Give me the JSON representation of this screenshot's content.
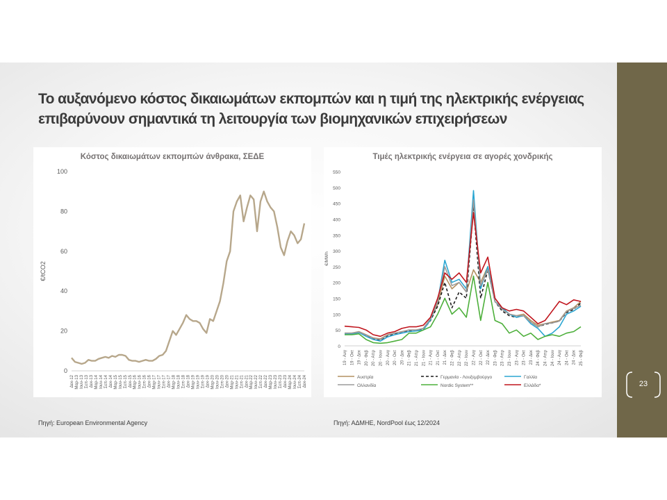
{
  "slide": {
    "title": "Το αυξανόμενο κόστος δικαιωμάτων εκπομπών και η τιμή της ηλεκτρικής ενέργειας επιβαρύνουν σημαντικά τη λειτουργία των βιομηχανικών επιχειρήσεων",
    "page_number": "23",
    "source_left": "Πηγή: European Environmental Agency",
    "source_right": "Πηγή: ΑΔΜΗΕ, NordPool έως 12/2024",
    "colors": {
      "sidebar": "#706749",
      "title": "#3b3b3b",
      "chart_title": "#757171"
    }
  },
  "chart_data": [
    {
      "type": "line",
      "title": "Κόστος δικαιωμάτων εκπομπών άνθρακα, ΣΕΔΕ",
      "ylabel": "€/tCO2",
      "ylim": [
        0,
        100
      ],
      "yticks": [
        0,
        20,
        40,
        60,
        80,
        100
      ],
      "grid": false,
      "x_tick_labels": [
        "Δεκ-12",
        "Μαρ-13",
        "Ιουν-13",
        "Σεπ-13",
        "Δεκ-13",
        "Μαρ-14",
        "Ιουν-14",
        "Σεπ-14",
        "Δεκ-14",
        "Μαρ-15",
        "Ιουν-15",
        "Σεπ-15",
        "Δεκ-15",
        "Μαρ-16",
        "Ιουν-16",
        "Σεπ-16",
        "Δεκ-16",
        "Μαρ-17",
        "Ιουν-17",
        "Σεπ-17",
        "Δεκ-17",
        "Μαρ-18",
        "Ιουν-18",
        "Σεπ-18",
        "Δεκ-18",
        "Μαρ-19",
        "Ιουν-19",
        "Σεπ-19",
        "Δεκ-19",
        "Μαρ-20",
        "Ιουν-20",
        "Σεπ-20",
        "Δεκ-20",
        "Μαρ-21",
        "Ιουν-21",
        "Σεπ-21",
        "Δεκ-21",
        "Μαρ-22",
        "Ιουν-22",
        "Σεπ-22",
        "Δεκ-22",
        "Μαρ-23",
        "Ιουν-23",
        "Σεπ-23",
        "Δεκ-23",
        "Μαρ-24",
        "Ιουν-24",
        "Σεπ-24",
        "Δεκ-24"
      ],
      "series": [
        {
          "color": "#b7a78b",
          "values": [
            6.5,
            4.5,
            4,
            3.5,
            4,
            5.5,
            5,
            5,
            6,
            6.5,
            7,
            6.5,
            7.5,
            7,
            8,
            8,
            7.5,
            5.5,
            5,
            5,
            4.5,
            5,
            5.5,
            5,
            5,
            6,
            7.5,
            8,
            10,
            15,
            20,
            18,
            21,
            24,
            28,
            26,
            25,
            25,
            24,
            21,
            19,
            26,
            25,
            30,
            35,
            44,
            55,
            60,
            80,
            85,
            88,
            75,
            82,
            88,
            86,
            70,
            85,
            90,
            85,
            82,
            80,
            72,
            62,
            58,
            65,
            70,
            68,
            64,
            66,
            74
          ]
        }
      ]
    },
    {
      "type": "line",
      "title": "Τιμές ηλεκτρικής ενέργεια σε αγορές χονδρικής",
      "ylabel": "€/MWh",
      "ylim": [
        0,
        550
      ],
      "yticks": [
        0,
        50,
        100,
        150,
        200,
        250,
        300,
        350,
        400,
        450,
        500,
        550
      ],
      "grid": false,
      "legend_position": "bottom",
      "categories": [
        "19 - Αυγ",
        "19 - Οκτ",
        "19 - Δεκ",
        "20 - Φεβ",
        "20 - Απρ",
        "20 - Ιουν",
        "20 - Αυγ",
        "20 - Οκτ",
        "20 - Δεκ",
        "21 - Φεβ",
        "21 - Απρ",
        "21 - Ιουν",
        "21 - Αυγ",
        "21 - Οκτ",
        "21 - Δεκ",
        "22 - Φεβ",
        "22 - Απρ",
        "22 - Ιουν",
        "22 - Αυγ",
        "22 - Οκτ",
        "22 - Δεκ",
        "23 - Φεβ",
        "23 - Απρ",
        "23 - Ιουν",
        "23 - Αυγ",
        "23 - Οκτ",
        "23 - Δεκ",
        "24 - Φεβ",
        "24 - Απρ",
        "24 - Ιουν",
        "24 - Αυγ",
        "24 - Οκτ",
        "24 - Δεκ",
        "25 - Φεβ"
      ],
      "series": [
        {
          "name": "Αυστρία",
          "color": "#b39060",
          "dash": "solid",
          "values": [
            40,
            40,
            45,
            35,
            25,
            22,
            35,
            40,
            45,
            50,
            50,
            55,
            85,
            130,
            220,
            180,
            200,
            170,
            240,
            200,
            250,
            150,
            120,
            100,
            95,
            100,
            80,
            65,
            70,
            75,
            80,
            110,
            120,
            140
          ]
        },
        {
          "name": "Γερμανία - Λουξεμβούργο",
          "color": "#1a1a1a",
          "dash": "dashed",
          "values": [
            38,
            38,
            43,
            33,
            22,
            18,
            32,
            38,
            42,
            48,
            48,
            52,
            80,
            125,
            200,
            120,
            170,
            150,
            440,
            150,
            240,
            140,
            110,
            95,
            90,
            95,
            75,
            60,
            68,
            72,
            78,
            105,
            115,
            135
          ]
        },
        {
          "name": "Γαλλία",
          "color": "#2aa6d2",
          "dash": "solid",
          "values": [
            37,
            37,
            42,
            30,
            20,
            15,
            28,
            35,
            40,
            45,
            47,
            50,
            82,
            140,
            270,
            200,
            210,
            180,
            490,
            180,
            250,
            140,
            120,
            100,
            90,
            95,
            70,
            55,
            30,
            40,
            60,
            100,
            110,
            125
          ]
        },
        {
          "name": "Ολλανδία",
          "color": "#9a9a9a",
          "dash": "solid",
          "values": [
            40,
            40,
            44,
            34,
            24,
            20,
            34,
            40,
            44,
            50,
            50,
            55,
            85,
            140,
            250,
            190,
            200,
            170,
            460,
            190,
            240,
            140,
            115,
            100,
            95,
            95,
            75,
            60,
            70,
            72,
            78,
            108,
            118,
            128
          ]
        },
        {
          "name": "Nordic System**",
          "color": "#4caf3a",
          "dash": "solid",
          "values": [
            35,
            35,
            38,
            20,
            10,
            8,
            10,
            15,
            20,
            40,
            40,
            50,
            60,
            100,
            150,
            100,
            120,
            90,
            220,
            80,
            200,
            80,
            70,
            40,
            50,
            30,
            40,
            20,
            30,
            35,
            30,
            40,
            45,
            60
          ]
        },
        {
          "name": "Ελλάδα*",
          "color": "#c0141c",
          "dash": "solid",
          "values": [
            62,
            60,
            58,
            50,
            35,
            30,
            40,
            45,
            55,
            60,
            60,
            65,
            90,
            150,
            230,
            210,
            230,
            200,
            420,
            230,
            280,
            150,
            120,
            110,
            115,
            110,
            90,
            70,
            80,
            110,
            140,
            130,
            145,
            140
          ]
        }
      ]
    }
  ]
}
